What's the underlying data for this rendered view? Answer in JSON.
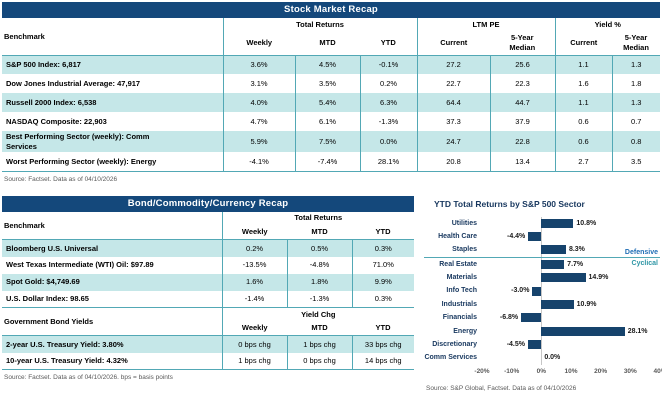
{
  "colors": {
    "header_navy": "#14487B",
    "teal_border": "#52A8B5",
    "row_highlight": "#C5E7E8",
    "bar_navy": "#16436C",
    "defensive_blue": "#1F6DB5",
    "cyclical_teal": "#2E96A5"
  },
  "stock_table": {
    "title": "Stock Market Recap",
    "benchmark_header": "Benchmark",
    "groups": [
      {
        "label": "Total Returns",
        "cols": [
          "Weekly",
          "MTD",
          "YTD"
        ]
      },
      {
        "label": "LTM PE",
        "cols": [
          "Current",
          "5-Year\nMedian"
        ]
      },
      {
        "label": "Yield %",
        "cols": [
          "Current",
          "5-Year\nMedian"
        ]
      }
    ],
    "rows": [
      {
        "label": "S&P 500 Index: 6,817",
        "values": [
          "3.6%",
          "4.5%",
          "-0.1%",
          "27.2",
          "25.6",
          "1.1",
          "1.3"
        ],
        "shaded": true
      },
      {
        "label": "Dow Jones Industrial Average: 47,917",
        "values": [
          "3.1%",
          "3.5%",
          "0.2%",
          "22.7",
          "22.3",
          "1.6",
          "1.8"
        ],
        "shaded": false
      },
      {
        "label": "Russell 2000 Index: 6,538",
        "values": [
          "4.0%",
          "5.4%",
          "6.3%",
          "64.4",
          "44.7",
          "1.1",
          "1.3"
        ],
        "shaded": true
      },
      {
        "label": "NASDAQ Composite: 22,903",
        "values": [
          "4.7%",
          "6.1%",
          "-1.3%",
          "37.3",
          "37.9",
          "0.6",
          "0.7"
        ],
        "shaded": false
      },
      {
        "label": "Best Performing Sector (weekly): Comm\nServices",
        "values": [
          "5.9%",
          "7.5%",
          "0.0%",
          "24.7",
          "22.8",
          "0.6",
          "0.8"
        ],
        "shaded": true
      },
      {
        "label": "Worst Performing Sector (weekly): Energy",
        "values": [
          "-4.1%",
          "-7.4%",
          "28.1%",
          "20.8",
          "13.4",
          "2.7",
          "3.5"
        ],
        "shaded": false
      }
    ],
    "source": "Source: Factset. Data as of 04/10/2026"
  },
  "bond_table": {
    "title": "Bond/Commodity/Currency Recap",
    "sections": [
      {
        "header_label": "Benchmark",
        "group_label": "Total Returns",
        "cols": [
          "Weekly",
          "MTD",
          "YTD"
        ],
        "rows": [
          {
            "label": "Bloomberg U.S. Universal",
            "values": [
              "0.2%",
              "0.5%",
              "0.3%"
            ],
            "shaded": true
          },
          {
            "label": "West Texas Intermediate (WTI) Oil: $97.89",
            "values": [
              "-13.5%",
              "-4.8%",
              "71.0%"
            ],
            "shaded": false
          },
          {
            "label": "Spot Gold: $4,749.69",
            "values": [
              "1.6%",
              "1.8%",
              "9.9%"
            ],
            "shaded": true
          },
          {
            "label": "U.S. Dollar Index: 98.65",
            "values": [
              "-1.4%",
              "-1.3%",
              "0.3%"
            ],
            "shaded": false
          }
        ]
      },
      {
        "header_label": "Government Bond Yields",
        "group_label": "Yield Chg",
        "cols": [
          "Weekly",
          "MTD",
          "YTD"
        ],
        "rows": [
          {
            "label": "2-year U.S. Treasury Yield: 3.80%",
            "values": [
              "0 bps chg",
              "1 bps chg",
              "33 bps chg"
            ],
            "shaded": true
          },
          {
            "label": "10-year U.S. Treasury Yield: 4.32%",
            "values": [
              "1 bps chg",
              "0 bps chg",
              "14 bps chg"
            ],
            "shaded": false
          }
        ]
      }
    ],
    "source": "Source: Factset. Data as of 04/10/2026. bps = basis points"
  },
  "chart_data": {
    "type": "bar",
    "orientation": "horizontal",
    "title": "YTD Total Returns by S&P 500 Sector",
    "categories": [
      "Utilities",
      "Health Care",
      "Staples",
      "Real Estate",
      "Materials",
      "Info Tech",
      "Industrials",
      "Financials",
      "Energy",
      "Discretionary",
      "Comm Services"
    ],
    "values": [
      10.8,
      -4.4,
      8.3,
      7.7,
      14.9,
      -3.0,
      10.9,
      -6.8,
      28.1,
      -4.5,
      0.0
    ],
    "value_labels": [
      "10.8%",
      "-4.4%",
      "8.3%",
      "7.7%",
      "14.9%",
      "-3.0%",
      "10.9%",
      "-6.8%",
      "28.1%",
      "-4.5%",
      "0.0%"
    ],
    "xlim": [
      -20,
      40
    ],
    "x_ticks": [
      "-20%",
      "-10%",
      "0%",
      "10%",
      "20%",
      "30%",
      "40%"
    ],
    "x_tick_values": [
      -20,
      -10,
      0,
      10,
      20,
      30,
      40
    ],
    "grid": false,
    "legend": false,
    "group_divider_after_index": 2,
    "group_labels": {
      "above": "Defensive",
      "below": "Cyclical"
    },
    "source": "Source: S&P Global, Factset. Data as of 04/10/2026"
  }
}
